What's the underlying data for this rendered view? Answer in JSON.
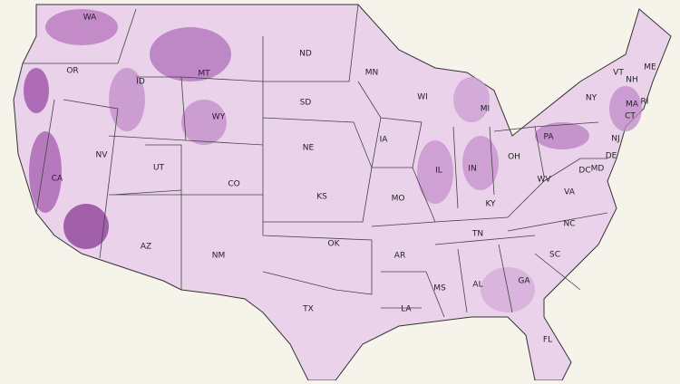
{
  "states": [
    "WA",
    "OR",
    "ID",
    "MT",
    "ND",
    "MN",
    "WI",
    "MI",
    "NY",
    "VT",
    "NH",
    "ME",
    "MA",
    "RI",
    "CT",
    "NJ",
    "PA",
    "OH",
    "IN",
    "IL",
    "IA",
    "NE",
    "SD",
    "WY",
    "NV",
    "UT",
    "CO",
    "KS",
    "MO",
    "KY",
    "WV",
    "VA",
    "DE",
    "MD",
    "DC",
    "NC",
    "TN",
    "AR",
    "OK",
    "NM",
    "AZ",
    "CA",
    "TX",
    "LA",
    "MS",
    "AL",
    "GA",
    "SC",
    "FL"
  ]
}
